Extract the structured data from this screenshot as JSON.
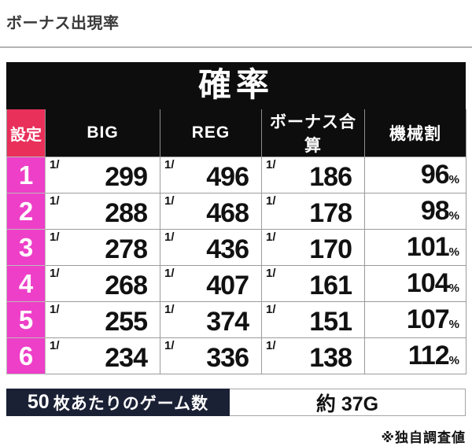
{
  "page": {
    "title": "ボーナス出現率",
    "footnote": "※独自調査値"
  },
  "table": {
    "title": "確率",
    "columns": [
      "設定",
      "BIG",
      "REG",
      "ボーナス合算",
      "機械割"
    ],
    "fraction_prefix": "1/",
    "percent_suffix": "%",
    "rows": [
      {
        "setting": "1",
        "big": "299",
        "reg": "496",
        "combined": "186",
        "payout": "96"
      },
      {
        "setting": "2",
        "big": "288",
        "reg": "468",
        "combined": "178",
        "payout": "98"
      },
      {
        "setting": "3",
        "big": "278",
        "reg": "436",
        "combined": "170",
        "payout": "101"
      },
      {
        "setting": "4",
        "big": "268",
        "reg": "407",
        "combined": "161",
        "payout": "104"
      },
      {
        "setting": "5",
        "big": "255",
        "reg": "374",
        "combined": "151",
        "payout": "107"
      },
      {
        "setting": "6",
        "big": "234",
        "reg": "336",
        "combined": "138",
        "payout": "112"
      }
    ]
  },
  "summary": {
    "label_number": "50",
    "label_text": "枚あたりのゲーム数",
    "value": "約 37G"
  },
  "colors": {
    "header_black": "#0d0d0d",
    "setting_header_red": "#e8305a",
    "setting_cell_magenta": "#ee3fc8",
    "summary_navy": "#1b2135",
    "border_gray": "#9b9b9b"
  }
}
